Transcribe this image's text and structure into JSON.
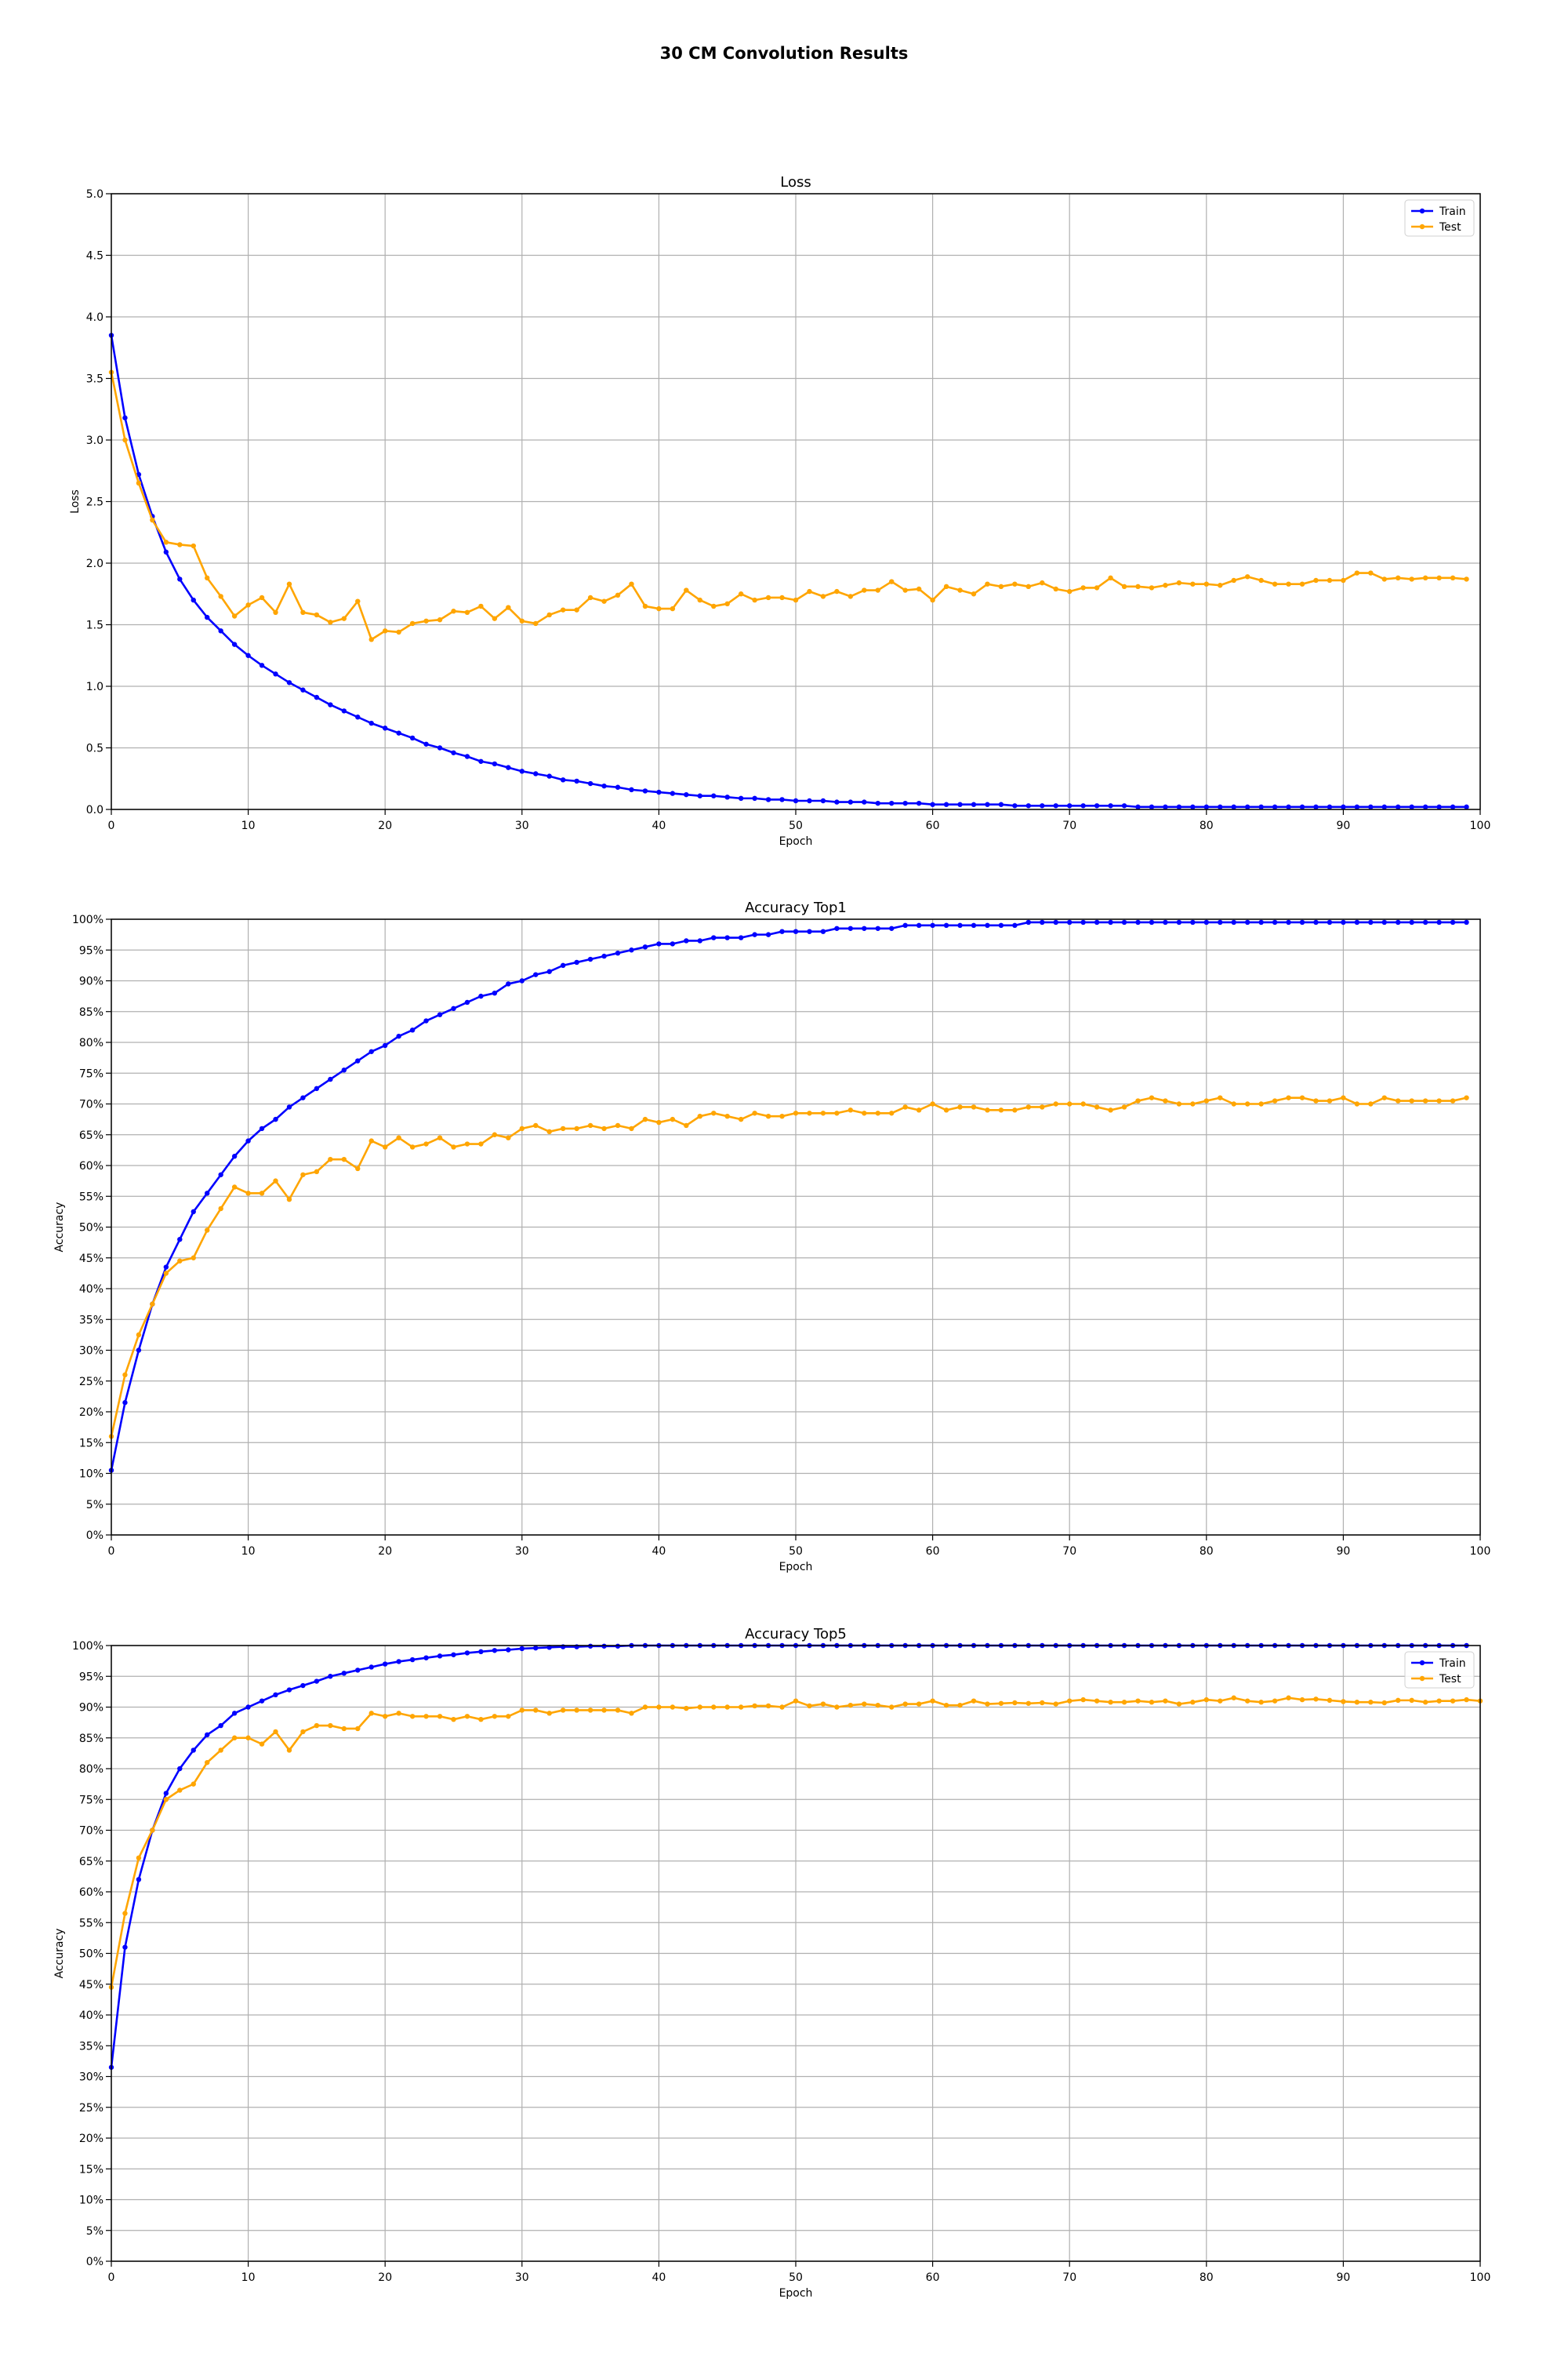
{
  "figure": {
    "title": "30 CM Convolution Results"
  },
  "colors": {
    "train": "#0000ff",
    "test": "#ffa500",
    "grid": "#b0b0b0"
  },
  "chart_data": [
    {
      "type": "line",
      "title": "Loss",
      "xlabel": "Epoch",
      "ylabel": "Loss",
      "xlim": [
        0,
        100
      ],
      "ylim": [
        0,
        5
      ],
      "xticks": [
        "0",
        "10",
        "20",
        "30",
        "40",
        "50",
        "60",
        "70",
        "80",
        "90",
        "100"
      ],
      "yticks": [
        "0.0",
        "0.5",
        "1.0",
        "1.5",
        "2.0",
        "2.5",
        "3.0",
        "3.5",
        "4.0",
        "4.5",
        "5.0"
      ],
      "grid": true,
      "legend": "upper right",
      "series": [
        {
          "name": "Train",
          "values": [
            3.85,
            3.18,
            2.72,
            2.38,
            2.09,
            1.87,
            1.7,
            1.56,
            1.45,
            1.34,
            1.25,
            1.17,
            1.1,
            1.03,
            0.97,
            0.91,
            0.85,
            0.8,
            0.75,
            0.7,
            0.66,
            0.62,
            0.58,
            0.53,
            0.5,
            0.46,
            0.43,
            0.39,
            0.37,
            0.34,
            0.31,
            0.29,
            0.27,
            0.24,
            0.23,
            0.21,
            0.19,
            0.18,
            0.16,
            0.15,
            0.14,
            0.13,
            0.12,
            0.11,
            0.11,
            0.1,
            0.09,
            0.09,
            0.08,
            0.08,
            0.07,
            0.07,
            0.07,
            0.06,
            0.06,
            0.06,
            0.05,
            0.05,
            0.05,
            0.05,
            0.04,
            0.04,
            0.04,
            0.04,
            0.04,
            0.04,
            0.03,
            0.03,
            0.03,
            0.03,
            0.03,
            0.03,
            0.03,
            0.03,
            0.03,
            0.02,
            0.02,
            0.02,
            0.02,
            0.02,
            0.02,
            0.02,
            0.02,
            0.02,
            0.02,
            0.02,
            0.02,
            0.02,
            0.02,
            0.02,
            0.02,
            0.02,
            0.02,
            0.02,
            0.02,
            0.02,
            0.02,
            0.02,
            0.02,
            0.02
          ]
        },
        {
          "name": "Test",
          "values": [
            3.55,
            3.0,
            2.65,
            2.35,
            2.17,
            2.15,
            2.14,
            1.88,
            1.73,
            1.57,
            1.66,
            1.72,
            1.6,
            1.83,
            1.6,
            1.58,
            1.52,
            1.55,
            1.69,
            1.38,
            1.45,
            1.44,
            1.51,
            1.53,
            1.54,
            1.61,
            1.6,
            1.65,
            1.55,
            1.64,
            1.53,
            1.51,
            1.58,
            1.62,
            1.62,
            1.72,
            1.69,
            1.74,
            1.83,
            1.65,
            1.63,
            1.63,
            1.78,
            1.7,
            1.65,
            1.67,
            1.75,
            1.7,
            1.72,
            1.72,
            1.7,
            1.77,
            1.73,
            1.77,
            1.73,
            1.78,
            1.78,
            1.85,
            1.78,
            1.79,
            1.7,
            1.81,
            1.78,
            1.75,
            1.83,
            1.81,
            1.83,
            1.81,
            1.84,
            1.79,
            1.77,
            1.8,
            1.8,
            1.88,
            1.81,
            1.81,
            1.8,
            1.82,
            1.84,
            1.83,
            1.83,
            1.82,
            1.86,
            1.89,
            1.86,
            1.83,
            1.83,
            1.83,
            1.86,
            1.86,
            1.86,
            1.92,
            1.92,
            1.87,
            1.88,
            1.87,
            1.88,
            1.88,
            1.88,
            1.87
          ]
        }
      ]
    },
    {
      "type": "line",
      "title": "Accuracy Top1",
      "xlabel": "Epoch",
      "ylabel": "Accuracy",
      "xlim": [
        0,
        100
      ],
      "ylim": [
        0,
        100
      ],
      "xticks": [
        "0",
        "10",
        "20",
        "30",
        "40",
        "50",
        "60",
        "70",
        "80",
        "90",
        "100"
      ],
      "yticks": [
        "0%",
        "5%",
        "10%",
        "15%",
        "20%",
        "25%",
        "30%",
        "35%",
        "40%",
        "45%",
        "50%",
        "55%",
        "60%",
        "65%",
        "70%",
        "75%",
        "80%",
        "85%",
        "90%",
        "95%",
        "100%"
      ],
      "grid": true,
      "series": [
        {
          "name": "Train",
          "values": [
            10.5,
            21.5,
            30,
            37.5,
            43.5,
            48,
            52.5,
            55.5,
            58.5,
            61.5,
            64,
            66,
            67.5,
            69.5,
            71,
            72.5,
            74,
            75.5,
            77,
            78.5,
            79.5,
            81,
            82,
            83.5,
            84.5,
            85.5,
            86.5,
            87.5,
            88,
            89.5,
            90,
            91,
            91.5,
            92.5,
            93,
            93.5,
            94,
            94.5,
            95,
            95.5,
            96,
            96,
            96.5,
            96.5,
            97,
            97,
            97,
            97.5,
            97.5,
            98,
            98,
            98,
            98,
            98.5,
            98.5,
            98.5,
            98.5,
            98.5,
            99,
            99,
            99,
            99,
            99,
            99,
            99,
            99,
            99,
            99.5,
            99.5,
            99.5,
            99.5,
            99.5,
            99.5,
            99.5,
            99.5,
            99.5,
            99.5,
            99.5,
            99.5,
            99.5,
            99.5,
            99.5,
            99.5,
            99.5,
            99.5,
            99.5,
            99.5,
            99.5,
            99.5,
            99.5,
            99.5,
            99.5,
            99.5,
            99.5,
            99.5,
            99.5,
            99.5,
            99.5,
            99.5,
            99.5
          ]
        },
        {
          "name": "Test",
          "values": [
            16,
            26,
            32.5,
            37.5,
            42.5,
            44.5,
            45,
            49.5,
            53,
            56.5,
            55.5,
            55.5,
            57.5,
            54.5,
            58.5,
            59,
            61,
            61,
            59.5,
            64,
            63,
            64.5,
            63,
            63.5,
            64.5,
            63,
            63.5,
            63.5,
            65,
            64.5,
            66,
            66.5,
            65.5,
            66,
            66,
            66.5,
            66,
            66.5,
            66,
            67.5,
            67,
            67.5,
            66.5,
            68,
            68.5,
            68,
            67.5,
            68.5,
            68,
            68,
            68.5,
            68.5,
            68.5,
            68.5,
            69,
            68.5,
            68.5,
            68.5,
            69.5,
            69,
            70,
            69,
            69.5,
            69.5,
            69,
            69,
            69,
            69.5,
            69.5,
            70,
            70,
            70,
            69.5,
            69,
            69.5,
            70.5,
            71,
            70.5,
            70,
            70,
            70.5,
            71,
            70,
            70,
            70,
            70.5,
            71,
            71,
            70.5,
            70.5,
            71,
            70,
            70,
            71,
            70.5,
            70.5,
            70.5,
            70.5,
            70.5,
            71
          ]
        }
      ]
    },
    {
      "type": "line",
      "title": "Accuracy Top5",
      "xlabel": "Epoch",
      "ylabel": "Accuracy",
      "xlim": [
        0,
        100
      ],
      "ylim": [
        0,
        100
      ],
      "xticks": [
        "0",
        "10",
        "20",
        "30",
        "40",
        "50",
        "60",
        "70",
        "80",
        "90",
        "100"
      ],
      "yticks": [
        "0%",
        "5%",
        "10%",
        "15%",
        "20%",
        "25%",
        "30%",
        "35%",
        "40%",
        "45%",
        "50%",
        "55%",
        "60%",
        "65%",
        "70%",
        "75%",
        "80%",
        "85%",
        "90%",
        "95%",
        "100%"
      ],
      "grid": true,
      "legend": "upper right",
      "series": [
        {
          "name": "Train",
          "values": [
            31.5,
            51,
            62,
            70,
            76,
            80,
            83,
            85.5,
            87,
            89,
            90,
            91,
            92,
            92.8,
            93.5,
            94.2,
            95,
            95.5,
            96,
            96.5,
            97,
            97.4,
            97.7,
            98,
            98.3,
            98.5,
            98.8,
            99,
            99.2,
            99.3,
            99.5,
            99.6,
            99.7,
            99.8,
            99.8,
            99.9,
            99.9,
            99.9,
            100,
            100,
            100,
            100,
            100,
            100,
            100,
            100,
            100,
            100,
            100,
            100,
            100,
            100,
            100,
            100,
            100,
            100,
            100,
            100,
            100,
            100,
            100,
            100,
            100,
            100,
            100,
            100,
            100,
            100,
            100,
            100,
            100,
            100,
            100,
            100,
            100,
            100,
            100,
            100,
            100,
            100,
            100,
            100,
            100,
            100,
            100,
            100,
            100,
            100,
            100,
            100,
            100,
            100,
            100,
            100,
            100,
            100,
            100,
            100,
            100,
            100
          ]
        },
        {
          "name": "Test",
          "values": [
            44.5,
            56.5,
            65.5,
            70,
            75,
            76.5,
            77.5,
            81,
            83,
            85,
            85,
            84,
            86,
            83,
            86,
            87,
            87,
            86.5,
            86.5,
            89,
            88.5,
            89,
            88.5,
            88.5,
            88.5,
            88,
            88.5,
            88,
            88.5,
            88.5,
            89.5,
            89.5,
            89,
            89.5,
            89.5,
            89.5,
            89.5,
            89.5,
            89,
            90,
            90,
            90,
            89.8,
            90,
            90,
            90,
            90,
            90.2,
            90.2,
            90,
            91,
            90.2,
            90.5,
            90,
            90.3,
            90.5,
            90.3,
            90,
            90.5,
            90.5,
            91,
            90.3,
            90.3,
            91,
            90.5,
            90.6,
            90.7,
            90.6,
            90.7,
            90.5,
            91,
            91.2,
            91,
            90.8,
            90.8,
            91,
            90.8,
            91,
            90.5,
            90.8,
            91.2,
            91,
            91.5,
            91,
            90.8,
            91,
            91.5,
            91.2,
            91.3,
            91.1,
            90.9,
            90.8,
            90.8,
            90.7,
            91.1,
            91.1,
            90.8,
            91,
            91,
            91.2,
            91
          ]
        }
      ]
    }
  ]
}
